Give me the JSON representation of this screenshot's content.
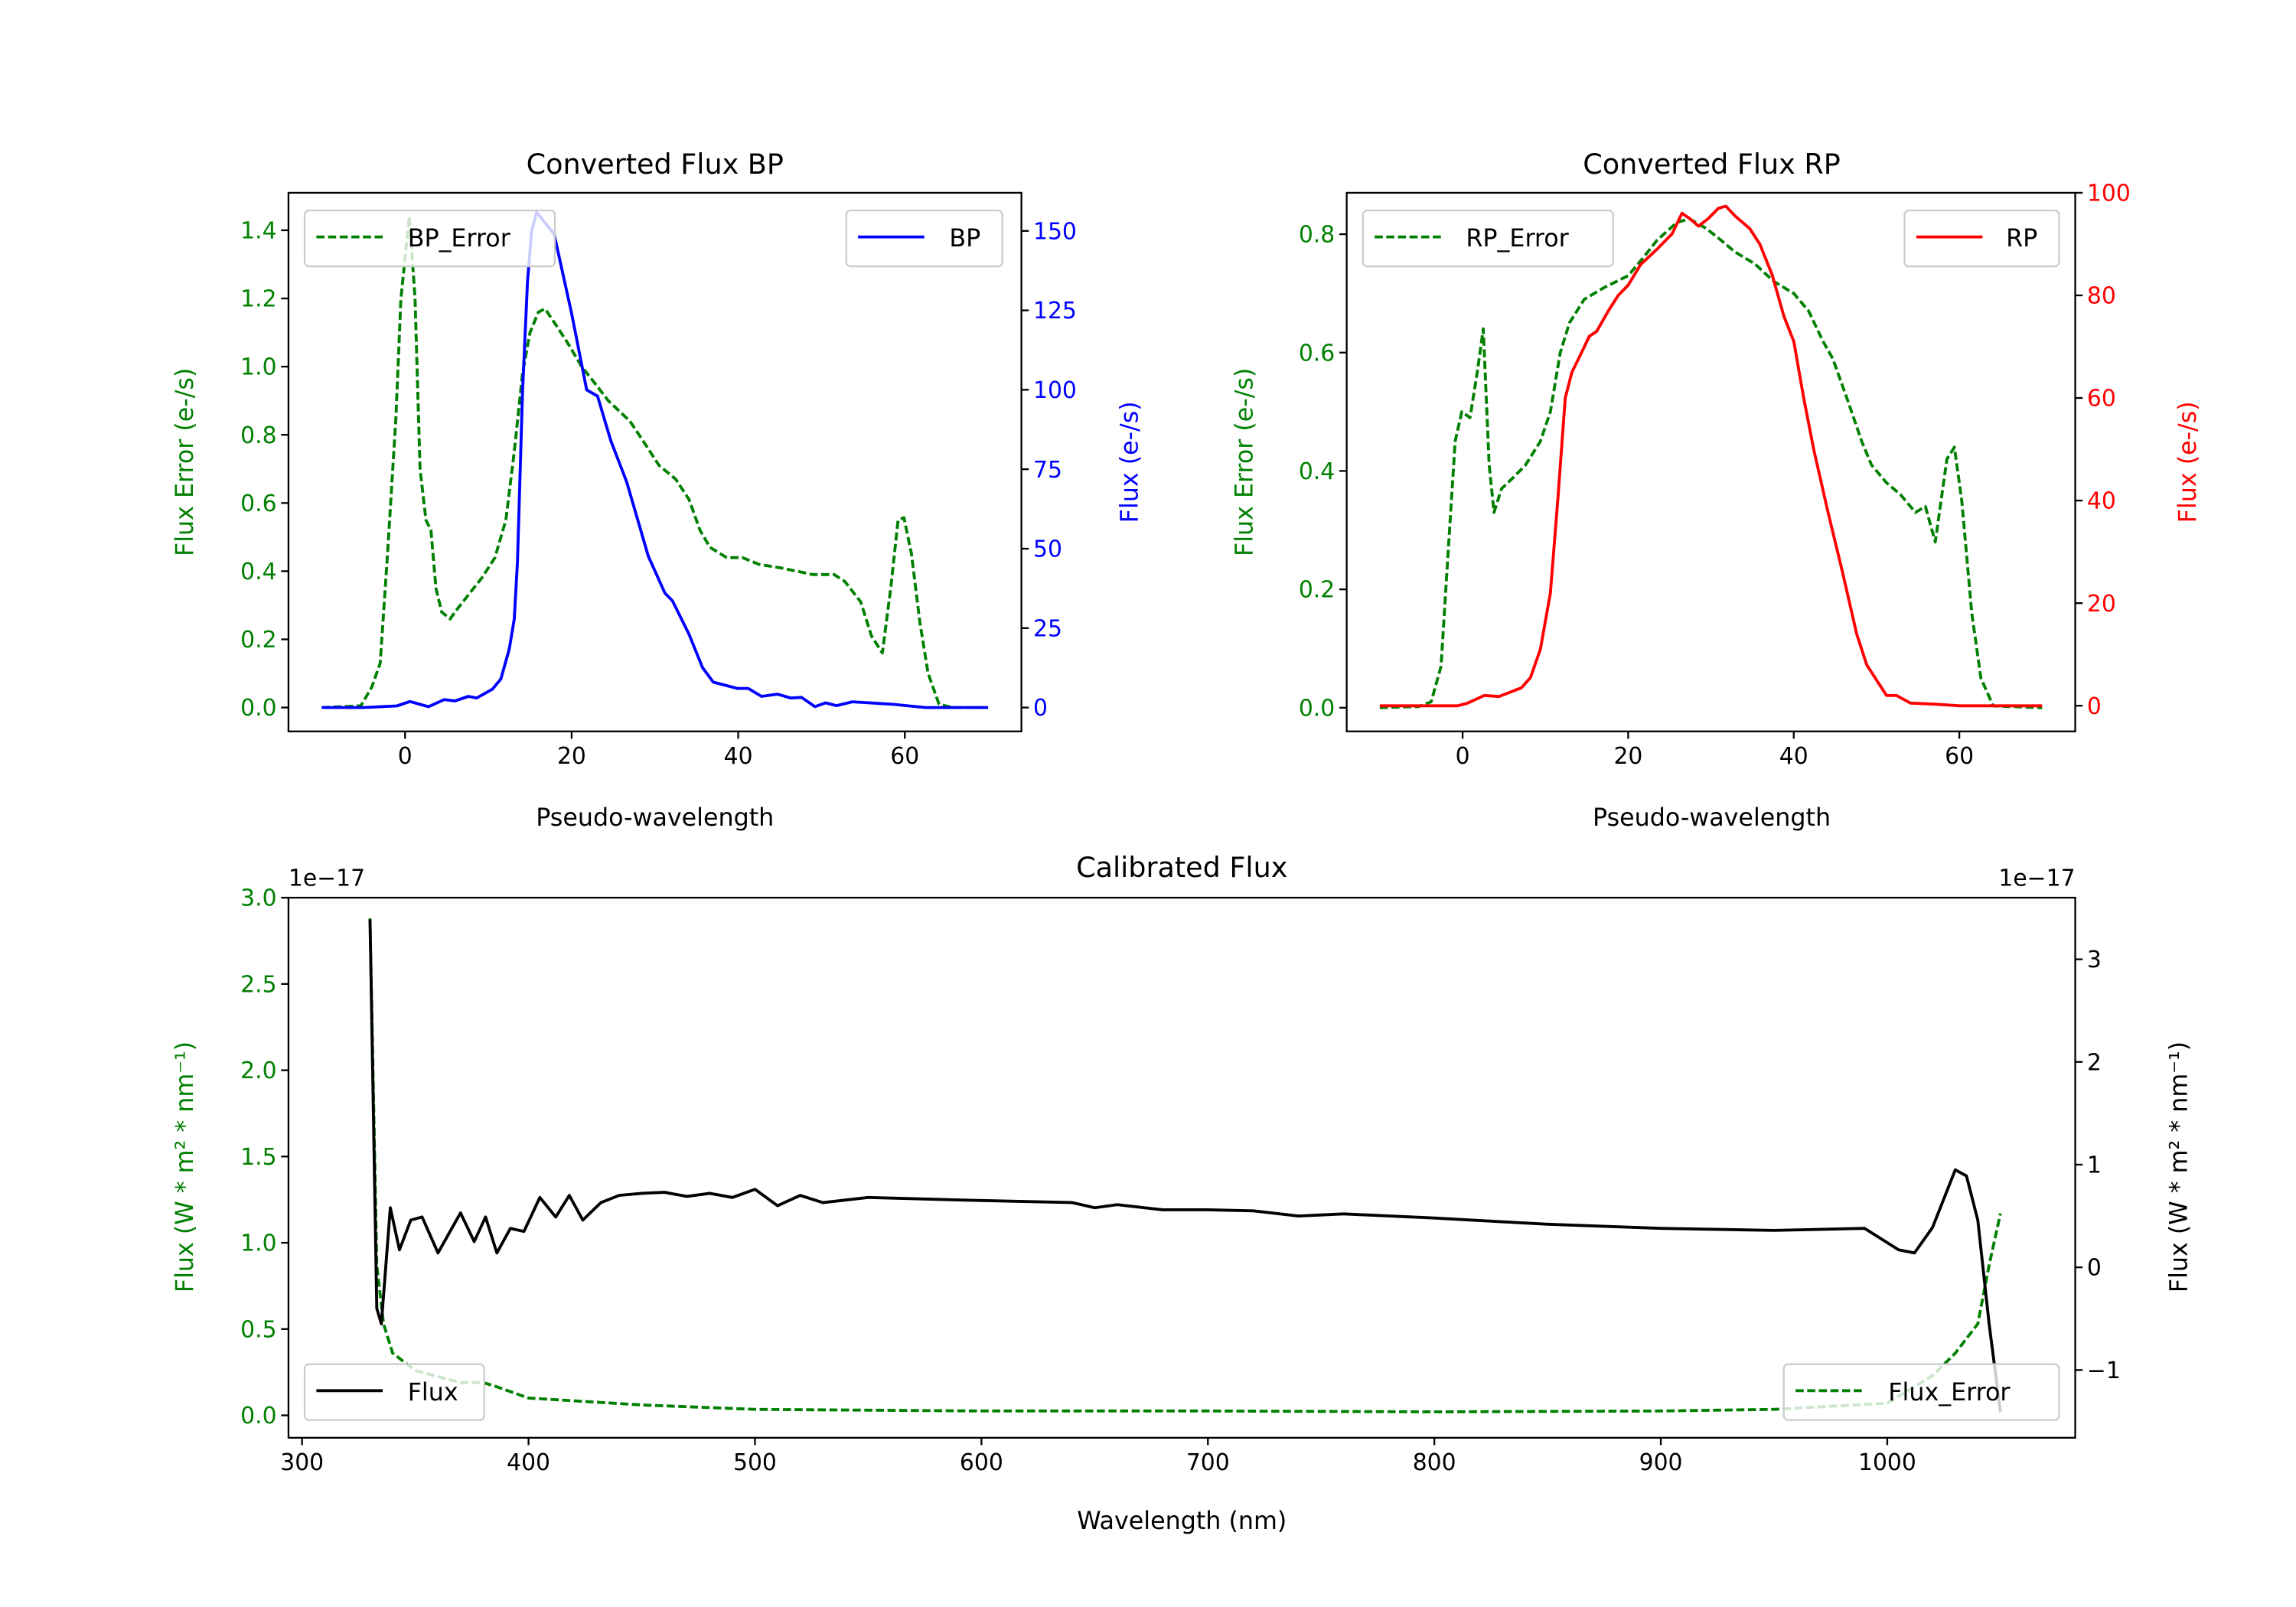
{
  "chart_data": [
    {
      "type": "line",
      "title": "Converted Flux BP",
      "xlabel": "Pseudo-wavelength",
      "ylabel_left": "Flux Error (e-/s)",
      "ylabel_right": "Flux (e-/s)",
      "xlim": [
        -14,
        74
      ],
      "ylim_left": [
        -0.07,
        1.51
      ],
      "ylim_right": [
        -7.5,
        162
      ],
      "x_ticks": [
        {
          "v": 0,
          "label": "0"
        },
        {
          "v": 20,
          "label": "20"
        },
        {
          "v": 40,
          "label": "40"
        },
        {
          "v": 60,
          "label": "60"
        }
      ],
      "left_ticks": [
        {
          "v": 0,
          "label": "0.0"
        },
        {
          "v": 0.2,
          "label": "0.2"
        },
        {
          "v": 0.4,
          "label": "0.4"
        },
        {
          "v": 0.6,
          "label": "0.6"
        },
        {
          "v": 0.8,
          "label": "0.8"
        },
        {
          "v": 1.0,
          "label": "1.0"
        },
        {
          "v": 1.2,
          "label": "1.2"
        },
        {
          "v": 1.4,
          "label": "1.4"
        }
      ],
      "right_ticks": [
        {
          "v": 0,
          "label": "0"
        },
        {
          "v": 25,
          "label": "25"
        },
        {
          "v": 50,
          "label": "50"
        },
        {
          "v": 75,
          "label": "75"
        },
        {
          "v": 100,
          "label": "100"
        },
        {
          "v": 125,
          "label": "125"
        },
        {
          "v": 150,
          "label": "150"
        }
      ],
      "left_color": "#008000",
      "right_color": "#0000ff",
      "legend": [
        {
          "label": "BP_Error",
          "placement": "upper-left"
        },
        {
          "label": "BP",
          "placement": "upper-right"
        }
      ],
      "series": [
        {
          "name": "BP_Error",
          "axis": "left",
          "color": "#008000",
          "style": "dashed",
          "x": [
            -10,
            -5.3,
            -4,
            -3,
            -2.1,
            -1.1,
            -0.5,
            0.5,
            1.2,
            1.8,
            2.5,
            3.1,
            3.7,
            4.4,
            5.4,
            6.3,
            7.6,
            9.2,
            10.8,
            12.1,
            13.1,
            14.1,
            15,
            16,
            16.8,
            17.9,
            19.5,
            21.2,
            22.5,
            24.4,
            27,
            28.9,
            30.5,
            32.5,
            34.1,
            35.4,
            36.6,
            38.6,
            40.5,
            42.5,
            45,
            47,
            48.9,
            51.5,
            52.8,
            54.7,
            56,
            57.3,
            58.3,
            59.2,
            59.9,
            60.8,
            61.8,
            62.8,
            64.1,
            65.7,
            70
          ],
          "y": [
            0,
            0.005,
            0.06,
            0.13,
            0.45,
            0.85,
            1.2,
            1.44,
            1.2,
            0.7,
            0.55,
            0.52,
            0.35,
            0.28,
            0.26,
            0.29,
            0.33,
            0.38,
            0.44,
            0.55,
            0.75,
            0.98,
            1.1,
            1.16,
            1.17,
            1.13,
            1.07,
            1.0,
            0.96,
            0.9,
            0.84,
            0.77,
            0.71,
            0.67,
            0.61,
            0.52,
            0.47,
            0.44,
            0.44,
            0.42,
            0.41,
            0.4,
            0.39,
            0.39,
            0.37,
            0.31,
            0.21,
            0.16,
            0.35,
            0.55,
            0.557,
            0.45,
            0.25,
            0.1,
            0.01,
            0,
            0
          ]
        },
        {
          "name": "BP",
          "axis": "right",
          "color": "#0000ff",
          "style": "solid",
          "x": [
            -10,
            -5,
            -1,
            0.6,
            2.8,
            4.7,
            6,
            7.6,
            8.6,
            10.5,
            11.5,
            12.5,
            13.1,
            13.5,
            14.1,
            14.7,
            15.2,
            15.8,
            17.9,
            20,
            21.8,
            23.1,
            24.7,
            26.6,
            29.2,
            31.2,
            32.1,
            34.1,
            35.7,
            37,
            39.9,
            41.2,
            42.8,
            44.7,
            46.3,
            47.6,
            49.2,
            50.5,
            51.8,
            53.7,
            58.6,
            62.5,
            70
          ],
          "y": [
            0,
            0,
            0.5,
            1.9,
            0.3,
            2.5,
            2.1,
            3.5,
            3,
            5.8,
            9,
            18.4,
            27.8,
            46,
            99,
            134,
            150,
            155.9,
            149,
            124,
            100,
            98,
            84,
            71,
            47.6,
            36,
            33.6,
            23,
            12.6,
            8,
            6,
            6,
            3.5,
            4.2,
            3,
            3.2,
            0.3,
            1.5,
            0.6,
            1.8,
            1,
            0,
            0
          ]
        }
      ]
    },
    {
      "type": "line",
      "title": "Converted Flux RP",
      "xlabel": "Pseudo-wavelength",
      "ylabel_left": "Flux Error (e-/s)",
      "ylabel_right": "Flux (e-/s)",
      "xlim": [
        -14,
        74
      ],
      "ylim_left": [
        -0.04,
        0.87
      ],
      "ylim_right": [
        -5,
        100
      ],
      "x_ticks": [
        {
          "v": 0,
          "label": "0"
        },
        {
          "v": 20,
          "label": "20"
        },
        {
          "v": 40,
          "label": "40"
        },
        {
          "v": 60,
          "label": "60"
        }
      ],
      "left_ticks": [
        {
          "v": 0,
          "label": "0.0"
        },
        {
          "v": 0.2,
          "label": "0.2"
        },
        {
          "v": 0.4,
          "label": "0.4"
        },
        {
          "v": 0.6,
          "label": "0.6"
        },
        {
          "v": 0.8,
          "label": "0.8"
        }
      ],
      "right_ticks": [
        {
          "v": 0,
          "label": "0"
        },
        {
          "v": 20,
          "label": "20"
        },
        {
          "v": 40,
          "label": "40"
        },
        {
          "v": 60,
          "label": "60"
        },
        {
          "v": 80,
          "label": "80"
        },
        {
          "v": 100,
          "label": "100"
        }
      ],
      "left_color": "#008000",
      "right_color": "#ff0000",
      "legend": [
        {
          "label": "RP_Error",
          "placement": "upper-left"
        },
        {
          "label": "RP",
          "placement": "upper-right"
        }
      ],
      "series": [
        {
          "name": "RP_Error",
          "axis": "left",
          "color": "#008000",
          "style": "dashed",
          "x": [
            -10,
            -5.3,
            -3.8,
            -2.6,
            -1.8,
            -0.9,
            -0.1,
            0.9,
            1.8,
            2.5,
            3.2,
            3.8,
            4.7,
            6.2,
            7.6,
            9.4,
            10.6,
            11.8,
            12.9,
            14.7,
            17.1,
            20,
            21.8,
            23.5,
            25.9,
            27.4,
            29.4,
            31.2,
            32.9,
            35.3,
            37.6,
            40,
            41.8,
            43.5,
            44.7,
            46.5,
            48.2,
            49.4,
            51.2,
            52.9,
            54.7,
            55.9,
            57.1,
            58.5,
            59.4,
            60.3,
            61.5,
            62.6,
            64.1,
            70
          ],
          "y": [
            0,
            0.002,
            0.01,
            0.07,
            0.25,
            0.45,
            0.5,
            0.49,
            0.57,
            0.64,
            0.41,
            0.33,
            0.37,
            0.39,
            0.41,
            0.45,
            0.5,
            0.6,
            0.65,
            0.69,
            0.71,
            0.73,
            0.76,
            0.79,
            0.82,
            0.826,
            0.81,
            0.79,
            0.77,
            0.75,
            0.72,
            0.7,
            0.67,
            0.62,
            0.59,
            0.52,
            0.45,
            0.41,
            0.38,
            0.36,
            0.33,
            0.34,
            0.28,
            0.42,
            0.44,
            0.35,
            0.16,
            0.05,
            0.003,
            0
          ]
        },
        {
          "name": "RP",
          "axis": "right",
          "color": "#ff0000",
          "style": "solid",
          "x": [
            -10,
            -0.6,
            0.6,
            2.6,
            4.4,
            7.1,
            8.2,
            9.4,
            10.6,
            11.5,
            12.4,
            13.2,
            14.4,
            15.3,
            16.2,
            17.6,
            18.8,
            20,
            21.5,
            23.5,
            25.3,
            26.5,
            27.4,
            28.5,
            29.7,
            30.9,
            31.8,
            32.9,
            34.7,
            35.9,
            37.4,
            38.8,
            40,
            41.2,
            42.4,
            44.1,
            45.9,
            47.6,
            48.8,
            50,
            51.2,
            52.4,
            54.1,
            57.1,
            60,
            70
          ],
          "y": [
            0,
            0,
            0.5,
            2,
            1.8,
            3.5,
            5.5,
            11,
            22,
            40,
            60,
            65,
            69,
            72,
            73,
            77,
            80,
            82,
            86,
            89,
            92,
            96,
            95,
            93.5,
            95,
            97,
            97.4,
            95.5,
            93,
            90,
            84,
            76,
            71,
            60,
            50,
            38,
            26,
            14,
            8,
            5,
            2,
            2,
            0.5,
            0.3,
            0,
            0
          ]
        }
      ]
    },
    {
      "type": "line",
      "title": "Calibrated Flux",
      "xlabel": "Wavelength (nm)",
      "ylabel_left": "Flux (W * m² * nm⁻¹)",
      "ylabel_right": "Flux (W * m² * nm⁻¹)",
      "offset_left": "1e−17",
      "offset_right": "1e−17",
      "xlim": [
        294,
        1083
      ],
      "ylim_left": [
        -0.13,
        3.0
      ],
      "ylim_right": [
        -1.66,
        3.6
      ],
      "x_ticks": [
        {
          "v": 300,
          "label": "300"
        },
        {
          "v": 400,
          "label": "400"
        },
        {
          "v": 500,
          "label": "500"
        },
        {
          "v": 600,
          "label": "600"
        },
        {
          "v": 700,
          "label": "700"
        },
        {
          "v": 800,
          "label": "800"
        },
        {
          "v": 900,
          "label": "900"
        },
        {
          "v": 1000,
          "label": "1000"
        }
      ],
      "left_ticks": [
        {
          "v": 0,
          "label": "0.0"
        },
        {
          "v": 0.5,
          "label": "0.5"
        },
        {
          "v": 1.0,
          "label": "1.0"
        },
        {
          "v": 1.5,
          "label": "1.5"
        },
        {
          "v": 2.0,
          "label": "2.0"
        },
        {
          "v": 2.5,
          "label": "2.5"
        },
        {
          "v": 3.0,
          "label": "3.0"
        }
      ],
      "right_ticks": [
        {
          "v": -1,
          "label": "−1"
        },
        {
          "v": 0,
          "label": "0"
        },
        {
          "v": 1,
          "label": "1"
        },
        {
          "v": 2,
          "label": "2"
        },
        {
          "v": 3,
          "label": "3"
        }
      ],
      "left_color": "#008000",
      "right_color": "#000000",
      "legend": [
        {
          "label": "Flux",
          "placement": "lower-left"
        },
        {
          "label": "Flux_Error",
          "placement": "lower-right"
        }
      ],
      "series": [
        {
          "name": "Flux_Error",
          "axis": "left",
          "color": "#008000",
          "style": "dashed",
          "x": [
            330,
            333,
            336,
            340,
            350,
            370,
            380,
            385,
            400,
            450,
            500,
            600,
            700,
            800,
            900,
            950,
            1000,
            1020,
            1030,
            1040,
            1045,
            1050
          ],
          "y": [
            2.88,
            0.87,
            0.53,
            0.36,
            0.26,
            0.19,
            0.19,
            0.17,
            0.1,
            0.06,
            0.035,
            0.025,
            0.025,
            0.02,
            0.025,
            0.035,
            0.07,
            0.23,
            0.36,
            0.53,
            0.87,
            1.17
          ]
        },
        {
          "name": "Flux",
          "axis": "right",
          "color": "#000000",
          "style": "solid",
          "x": [
            330,
            333,
            335,
            339,
            343,
            348,
            353,
            360,
            370,
            376,
            381,
            386,
            392,
            398,
            405,
            412,
            418,
            424,
            432,
            440,
            450,
            460,
            470,
            480,
            490,
            500,
            510,
            520,
            530,
            550,
            600,
            640,
            650,
            660,
            680,
            700,
            720,
            740,
            760,
            800,
            850,
            900,
            950,
            990,
            1005,
            1012,
            1020,
            1030,
            1035,
            1040,
            1045,
            1050
          ],
          "y": [
            3.39,
            -0.4,
            -0.55,
            0.58,
            0.17,
            0.46,
            0.49,
            0.14,
            0.53,
            0.25,
            0.49,
            0.14,
            0.38,
            0.35,
            0.68,
            0.49,
            0.7,
            0.46,
            0.63,
            0.7,
            0.72,
            0.73,
            0.69,
            0.72,
            0.68,
            0.76,
            0.6,
            0.7,
            0.63,
            0.68,
            0.65,
            0.63,
            0.58,
            0.61,
            0.56,
            0.56,
            0.55,
            0.5,
            0.52,
            0.48,
            0.42,
            0.38,
            0.36,
            0.38,
            0.17,
            0.14,
            0.39,
            0.95,
            0.89,
            0.46,
            -0.55,
            -1.41
          ]
        }
      ]
    }
  ]
}
